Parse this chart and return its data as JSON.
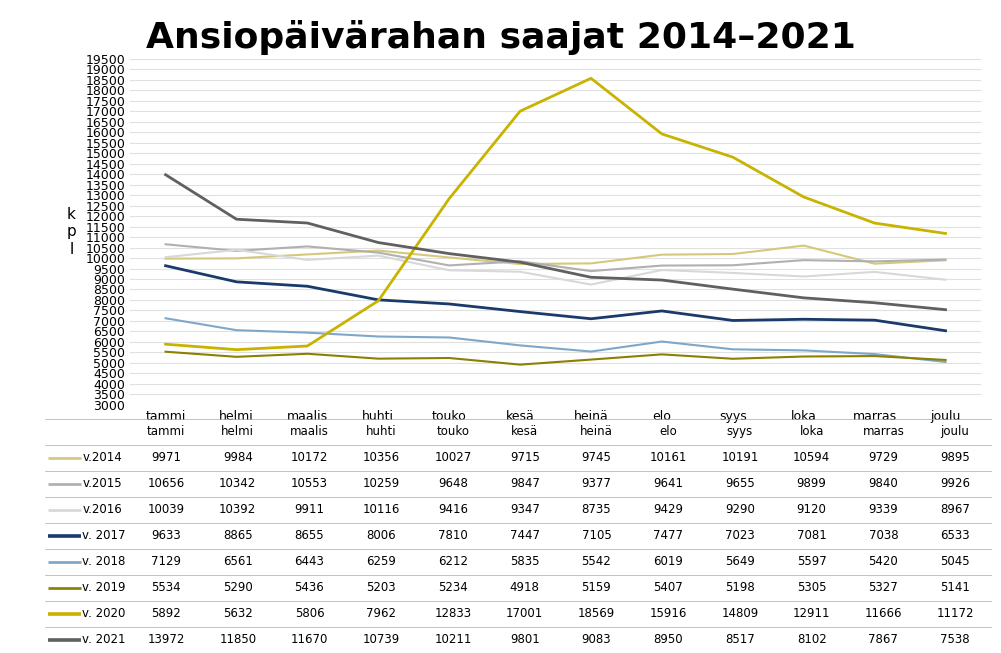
{
  "title": "Ansiopäivärahan saajat 2014–2021",
  "ylabel": "k\np\nl",
  "months": [
    "tammi",
    "helmi",
    "maalis",
    "huhti",
    "touko",
    "kesä",
    "heinä",
    "elo",
    "syys",
    "loka",
    "marras",
    "joulu"
  ],
  "series": [
    {
      "label": "v.2014",
      "color": "#d4c97a",
      "linewidth": 1.5,
      "values": [
        9971,
        9984,
        10172,
        10356,
        10027,
        9715,
        9745,
        10161,
        10191,
        10594,
        9729,
        9895
      ]
    },
    {
      "label": "v.2015",
      "color": "#b0b0b0",
      "linewidth": 1.5,
      "values": [
        10656,
        10342,
        10553,
        10259,
        9648,
        9847,
        9377,
        9641,
        9655,
        9899,
        9840,
        9926
      ]
    },
    {
      "label": "v.2016",
      "color": "#d8d8d8",
      "linewidth": 1.5,
      "values": [
        10039,
        10392,
        9911,
        10116,
        9416,
        9347,
        8735,
        9429,
        9290,
        9120,
        9339,
        8967
      ]
    },
    {
      "label": "v. 2017",
      "color": "#1a3a6b",
      "linewidth": 2.0,
      "values": [
        9633,
        8865,
        8655,
        8006,
        7810,
        7447,
        7105,
        7477,
        7023,
        7081,
        7038,
        6533
      ]
    },
    {
      "label": "v. 2018",
      "color": "#7fa7c9",
      "linewidth": 1.5,
      "values": [
        7129,
        6561,
        6443,
        6259,
        6212,
        5835,
        5542,
        6019,
        5649,
        5597,
        5420,
        5045
      ]
    },
    {
      "label": "v. 2019",
      "color": "#8b8000",
      "linewidth": 1.5,
      "values": [
        5534,
        5290,
        5436,
        5203,
        5234,
        4918,
        5159,
        5407,
        5198,
        5305,
        5327,
        5141
      ]
    },
    {
      "label": "v. 2020",
      "color": "#c8b400",
      "linewidth": 2.0,
      "values": [
        5892,
        5632,
        5806,
        7962,
        12833,
        17001,
        18569,
        15916,
        14809,
        12911,
        11666,
        11172
      ]
    },
    {
      "label": "v. 2021",
      "color": "#606060",
      "linewidth": 2.0,
      "values": [
        13972,
        11850,
        11670,
        10739,
        10211,
        9801,
        9083,
        8950,
        8517,
        8102,
        7867,
        7538
      ]
    }
  ],
  "ylim": [
    3000,
    19500
  ],
  "yticks": [
    3000,
    3500,
    4000,
    4500,
    5000,
    5500,
    6000,
    6500,
    7000,
    7500,
    8000,
    8500,
    9000,
    9500,
    10000,
    10500,
    11000,
    11500,
    12000,
    12500,
    13000,
    13500,
    14000,
    14500,
    15000,
    15500,
    16000,
    16500,
    17000,
    17500,
    18000,
    18500,
    19000,
    19500
  ],
  "grid_color": "#e0e0e0",
  "title_fontsize": 26,
  "axis_fontsize": 9,
  "table_fontsize": 8.5,
  "line_color": "#aaaaaa",
  "line_lw": 0.5
}
